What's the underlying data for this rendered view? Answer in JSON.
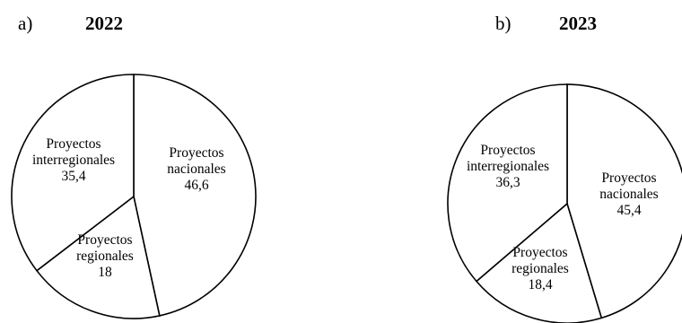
{
  "chart_data": [
    {
      "type": "pie",
      "panel": "a)",
      "title": "2022",
      "slices": [
        {
          "label": [
            "Proyectos",
            "nacionales"
          ],
          "value": 46.6,
          "display": "46,6"
        },
        {
          "label": [
            "Proyectos",
            "regionales"
          ],
          "value": 18,
          "display": "18"
        },
        {
          "label": [
            "Proyectos",
            "interregionales"
          ],
          "value": 35.4,
          "display": "35,4"
        }
      ]
    },
    {
      "type": "pie",
      "panel": "b)",
      "title": "2023",
      "slices": [
        {
          "label": [
            "Proyectos",
            "nacionales"
          ],
          "value": 45.4,
          "display": "45,4"
        },
        {
          "label": [
            "Proyectos",
            "regionales"
          ],
          "value": 18.4,
          "display": "18,4"
        },
        {
          "label": [
            "Proyectos",
            "interregionales"
          ],
          "value": 36.3,
          "display": "36,3"
        }
      ]
    }
  ]
}
